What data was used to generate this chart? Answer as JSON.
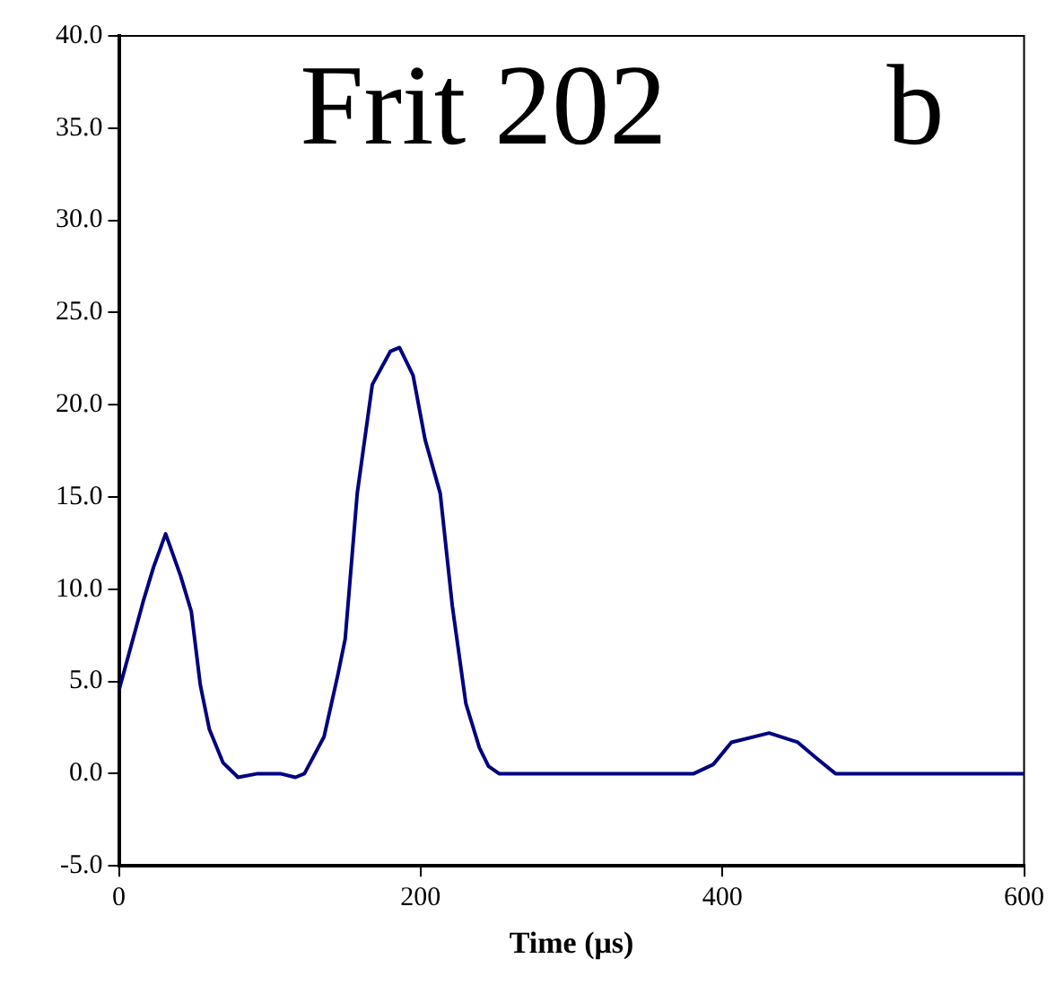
{
  "chart_data": {
    "type": "line",
    "xlabel": "Time (μs)",
    "annotations": [
      "Frit 202",
      "b"
    ],
    "xlim": [
      0,
      600
    ],
    "xticks": [
      0,
      200,
      400,
      600
    ],
    "ylim": [
      -5,
      40
    ],
    "yticks": [
      {
        "value": -5,
        "label": "-5.0"
      },
      {
        "value": 0,
        "label": "0.0"
      },
      {
        "value": 5,
        "label": "5.0"
      },
      {
        "value": 10,
        "label": "10.0"
      },
      {
        "value": 15,
        "label": "15.0"
      },
      {
        "value": 20,
        "label": "20.0"
      },
      {
        "value": 25,
        "label": "25.0"
      },
      {
        "value": 30,
        "label": "30.0"
      },
      {
        "value": 35,
        "label": "35.0"
      },
      {
        "value": 40,
        "label": "40.0"
      }
    ],
    "grid": false,
    "legend": false,
    "marker": "none",
    "line_style": "solid",
    "series": [
      {
        "color": "#000080",
        "x": [
          0,
          10,
          16,
          23,
          31,
          41,
          48,
          54,
          60,
          69,
          79,
          92,
          107,
          117,
          123,
          136,
          145,
          150,
          158,
          168,
          180,
          186,
          195,
          203,
          213,
          221,
          230,
          239,
          245,
          252,
          381,
          394,
          406,
          431,
          450,
          463,
          475,
          600
        ],
        "values": [
          4.5,
          7.5,
          9.3,
          11.2,
          13.0,
          10.7,
          8.8,
          4.8,
          2.4,
          0.6,
          -0.2,
          0,
          0,
          -0.2,
          0,
          2.0,
          5.3,
          7.3,
          15.2,
          21.1,
          22.9,
          23.1,
          21.6,
          18.1,
          15.2,
          9.1,
          3.8,
          1.4,
          0.4,
          0,
          0,
          0.5,
          1.7,
          2.2,
          1.7,
          0.8,
          0,
          0
        ]
      }
    ]
  }
}
